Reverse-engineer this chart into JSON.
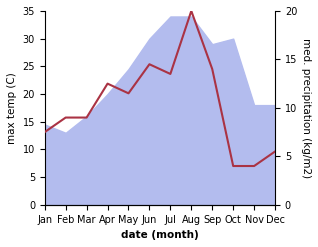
{
  "months": [
    "Jan",
    "Feb",
    "Mar",
    "Apr",
    "May",
    "Jun",
    "Jul",
    "Aug",
    "Sep",
    "Oct",
    "Nov",
    "Dec"
  ],
  "max_temp": [
    14.5,
    13.0,
    16.0,
    20.0,
    24.5,
    30.0,
    34.0,
    34.0,
    29.0,
    30.0,
    18.0,
    18.0
  ],
  "med_precip": [
    7.5,
    9.0,
    9.0,
    12.5,
    11.5,
    14.5,
    13.5,
    20.0,
    14.0,
    4.0,
    4.0,
    5.5
  ],
  "temp_color_fill": "#b3bcee",
  "precip_color": "#aa3344",
  "temp_ylim": [
    0,
    35
  ],
  "precip_ylim": [
    0,
    20
  ],
  "temp_yticks": [
    0,
    5,
    10,
    15,
    20,
    25,
    30,
    35
  ],
  "precip_yticks": [
    0,
    5,
    10,
    15,
    20
  ],
  "ylabel_left": "max temp (C)",
  "ylabel_right": "med. precipitation (kg/m2)",
  "xlabel": "date (month)",
  "bg_color": "#ffffff",
  "line_width": 1.5,
  "label_fontsize": 7.5,
  "tick_fontsize": 7
}
